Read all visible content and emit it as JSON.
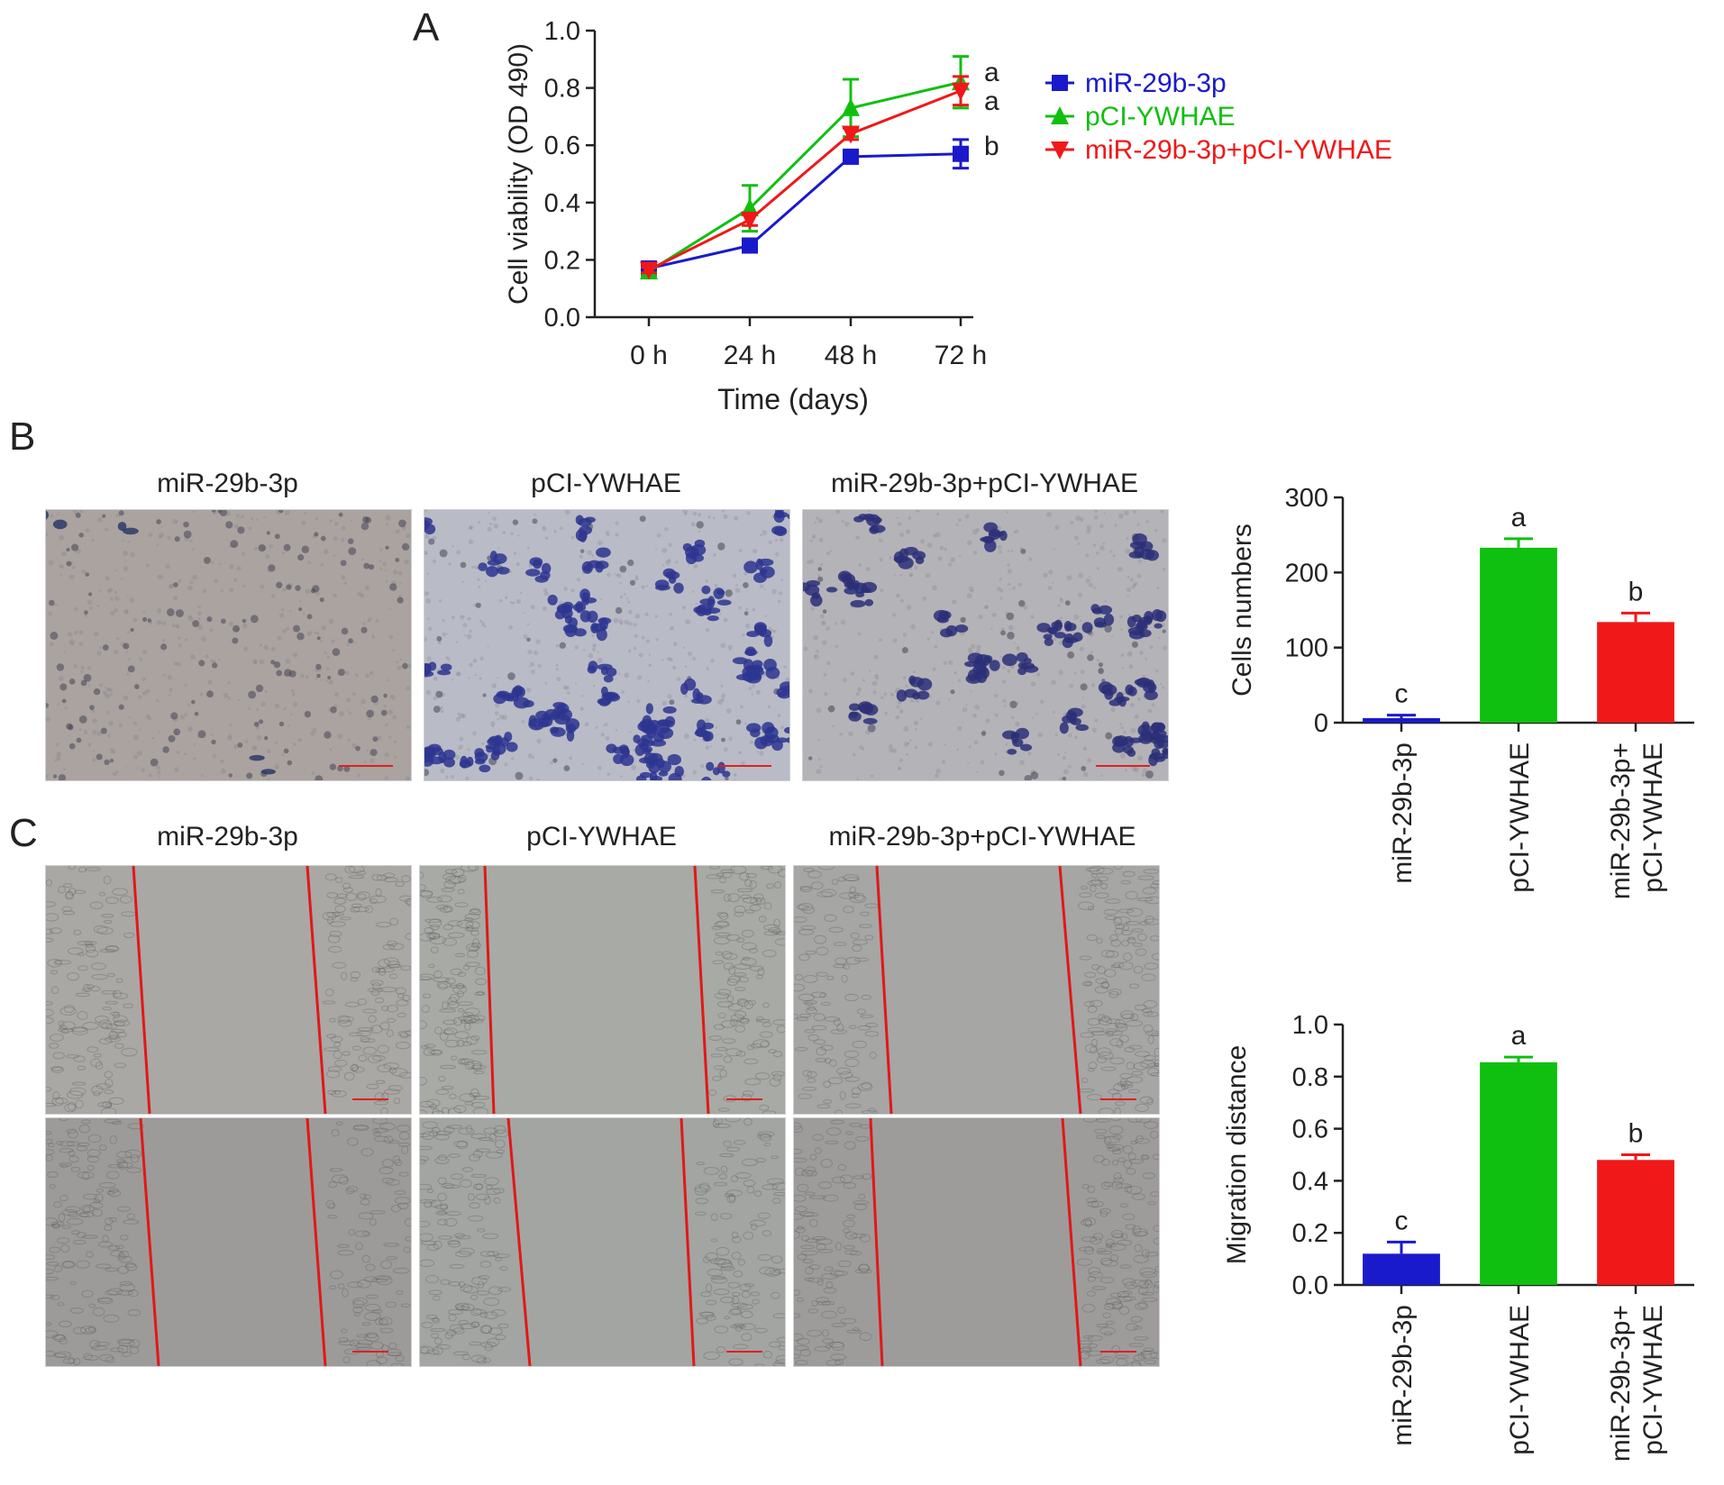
{
  "panel_labels": {
    "a": "A",
    "b": "B",
    "c": "C"
  },
  "panel_b": {
    "image_titles": [
      "miR-29b-3p",
      "pCI-YWHAE",
      "miR-29b-3p+pCI-YWHAE"
    ]
  },
  "panel_c": {
    "image_titles": [
      "miR-29b-3p",
      "pCI-YWHAE",
      "miR-29b-3p+pCI-YWHAE"
    ]
  },
  "colors": {
    "blue": "#1a1acd",
    "green": "#10c010",
    "red": "#f01818",
    "axis": "#222222"
  },
  "chart_data": [
    {
      "id": "line-viability",
      "type": "line",
      "title": "",
      "xlabel": "Time (days)",
      "ylabel": "Cell viability (OD 490)",
      "categories": [
        "0 h",
        "24 h",
        "48 h",
        "72 h"
      ],
      "ylim": [
        0,
        1.0
      ],
      "yticks": [
        "0.0",
        "0.2",
        "0.4",
        "0.6",
        "0.8",
        "1.0"
      ],
      "legend_position": "right",
      "series": [
        {
          "name": "miR-29b-3p",
          "color": "#1a1acd",
          "marker": "square",
          "values": [
            0.17,
            0.25,
            0.56,
            0.57
          ],
          "errors": [
            0.015,
            0.01,
            0.02,
            0.05
          ],
          "end_label": "b"
        },
        {
          "name": "pCI-YWHAE",
          "color": "#10c010",
          "marker": "triangle-up",
          "values": [
            0.16,
            0.38,
            0.73,
            0.82
          ],
          "errors": [
            0.015,
            0.08,
            0.1,
            0.09
          ],
          "end_label": "a"
        },
        {
          "name": "miR-29b-3p+pCI-YWHAE",
          "color": "#f01818",
          "marker": "triangle-down",
          "values": [
            0.165,
            0.34,
            0.64,
            0.79
          ],
          "errors": [
            0.01,
            0.02,
            0.02,
            0.05
          ],
          "end_label": "a"
        }
      ]
    },
    {
      "id": "bar-cells",
      "type": "bar",
      "title": "",
      "xlabel": "",
      "ylabel": "Cells numbers",
      "categories": [
        "miR-29b-3p",
        "pCI-YWHAE",
        "miR-29b-3p+\npCI-YWHAE"
      ],
      "values": [
        6,
        233,
        134
      ],
      "errors": [
        4,
        12,
        12
      ],
      "colors": [
        "#1a1acd",
        "#10c010",
        "#f01818"
      ],
      "labels": [
        "c",
        "a",
        "b"
      ],
      "ylim": [
        0,
        300
      ],
      "yticks": [
        "0",
        "100",
        "200",
        "300"
      ]
    },
    {
      "id": "bar-migration",
      "type": "bar",
      "title": "",
      "xlabel": "",
      "ylabel": "Migration distance",
      "categories": [
        "miR-29b-3p",
        "pCI-YWHAE",
        "miR-29b-3p+\npCI-YWHAE"
      ],
      "values": [
        0.12,
        0.855,
        0.48
      ],
      "errors": [
        0.045,
        0.02,
        0.02
      ],
      "colors": [
        "#1a1acd",
        "#10c010",
        "#f01818"
      ],
      "labels": [
        "c",
        "a",
        "b"
      ],
      "ylim": [
        0,
        1.0
      ],
      "yticks": [
        "0.0",
        "0.2",
        "0.4",
        "0.6",
        "0.8",
        "1.0"
      ]
    }
  ]
}
